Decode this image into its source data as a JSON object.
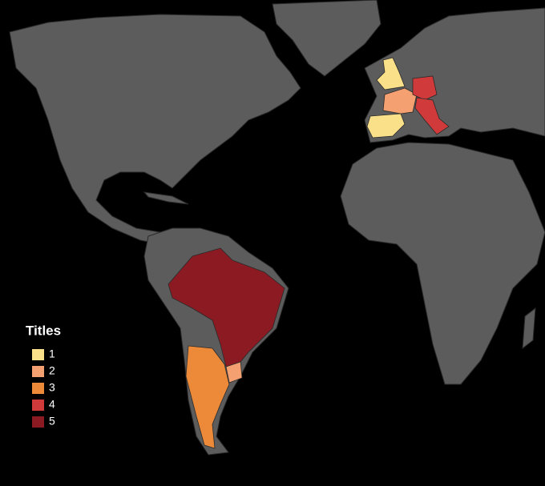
{
  "chart_data": {
    "type": "choropleth",
    "values": [
      1,
      1,
      2,
      2,
      3,
      4,
      4,
      5
    ],
    "legend": {
      "title": "Titles",
      "items": [
        {
          "value": 1,
          "color": "#fbe08a"
        },
        {
          "value": 2,
          "color": "#f4a070"
        },
        {
          "value": 3,
          "color": "#ec8a3a"
        },
        {
          "value": 4,
          "color": "#d03a3a"
        },
        {
          "value": 5,
          "color": "#8b1a22"
        }
      ]
    },
    "land_color": "#5c5c5c"
  }
}
